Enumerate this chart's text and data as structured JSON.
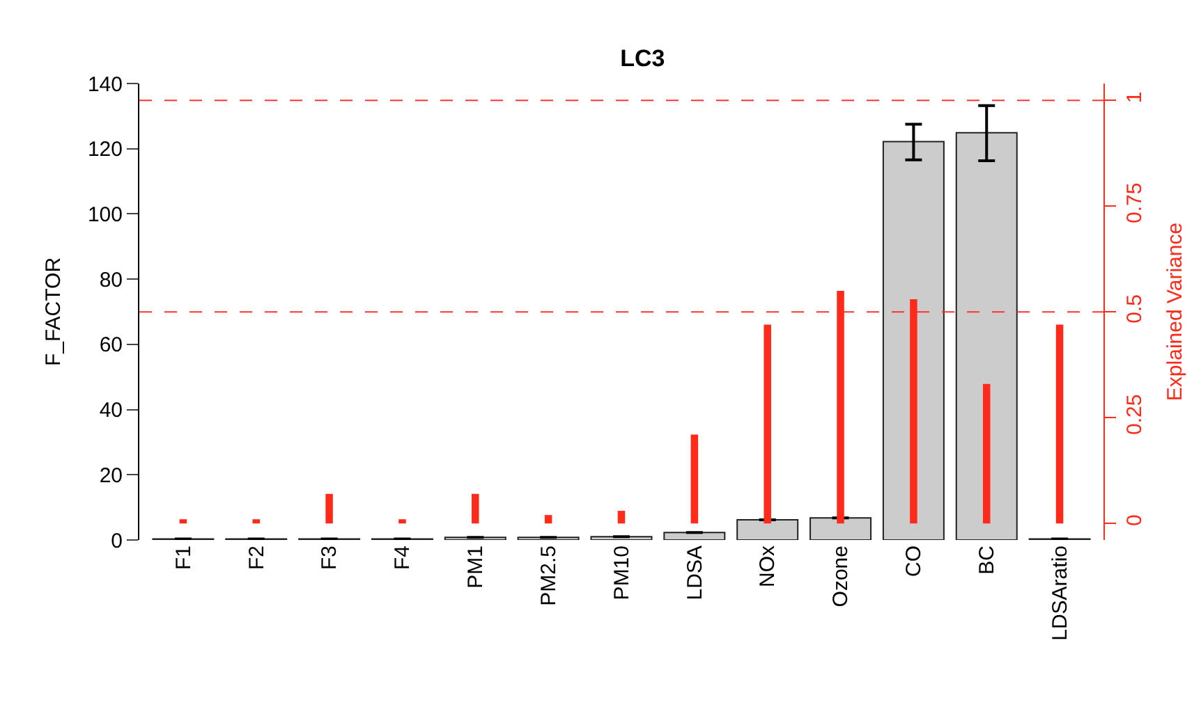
{
  "chart_data": {
    "type": "bar",
    "title": "LC3",
    "ylabel": "F_FACTOR",
    "y2label": "Explained Variance",
    "categories": [
      "F1",
      "F2",
      "F3",
      "F4",
      "PM1",
      "PM2.5",
      "PM10",
      "LDSA",
      "NOx",
      "Ozone",
      "CO",
      "BC",
      "LDSAratio"
    ],
    "series": [
      {
        "color": "#cccccc",
        "values": [
          0.3,
          0.3,
          0.3,
          0.3,
          0.8,
          0.8,
          1,
          2.3,
          6.2,
          6.8,
          122.2,
          124.9,
          0.3
        ],
        "errors": [
          null,
          null,
          null,
          null,
          null,
          null,
          null,
          null,
          null,
          null,
          [
            116.6,
            127.5
          ],
          [
            116.3,
            133.2
          ],
          null
        ]
      },
      {
        "axis": "y2",
        "color": "#ff2a1a",
        "base": [
          0,
          0,
          0,
          0,
          0,
          0,
          0,
          0,
          0,
          0,
          0,
          0,
          0
        ],
        "values": [
          0.01,
          0.01,
          0.07,
          0.01,
          0.07,
          0.02,
          0.03,
          0.21,
          0.47,
          0.55,
          0.53,
          0.33,
          0.47
        ]
      }
    ],
    "ylim": [
      0,
      140
    ],
    "yticks": [
      0,
      20,
      40,
      60,
      80,
      100,
      120,
      140
    ],
    "y2lim": [
      -0.039,
      1.04
    ],
    "y2ticks": [
      0,
      0.25,
      0.5,
      0.75,
      1
    ],
    "ref_lines": [
      {
        "axis": "y2",
        "value": 1,
        "color": "#ff3333",
        "line_style": "dashed"
      },
      {
        "axis": "y2",
        "value": 0.5,
        "color": "#ff3333",
        "line_style": "dashed"
      }
    ]
  }
}
